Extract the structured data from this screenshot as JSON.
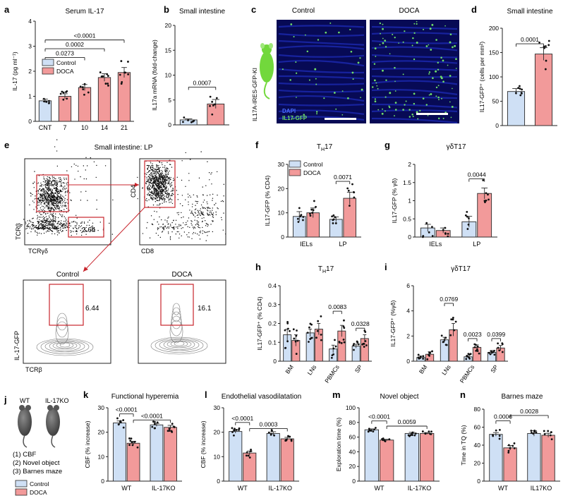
{
  "colors": {
    "control": "#cfe0f5",
    "doca": "#f29a9a",
    "edge": "#2b2b2b",
    "gate": "#c8242c",
    "micro_bg": "#0b0f5a",
    "green": "#6fe06a"
  },
  "panels": [
    {
      "key": "a",
      "letter": "a",
      "title": "Serum IL-17",
      "ylabel": "IL-17 (pg ml⁻¹)",
      "ylim": [
        0,
        4
      ],
      "yticks": [
        0,
        1,
        2,
        3,
        4
      ],
      "categories": [
        "CNT",
        "7",
        "10",
        "14",
        "21"
      ],
      "values": [
        0.82,
        1.0,
        1.35,
        1.75,
        1.95
      ],
      "errors": [
        0.07,
        0.1,
        0.12,
        0.15,
        0.2
      ],
      "groups": [
        "control",
        "doca",
        "doca",
        "doca",
        "doca"
      ],
      "xlabel": "",
      "legend": [
        "Control",
        "DOCA"
      ],
      "sig": [
        {
          "text": "<0.0001",
          "from": 0,
          "to": 4,
          "y": 3.25
        },
        {
          "text": "0.0002",
          "from": 0,
          "to": 3,
          "y": 2.9
        },
        {
          "text": "0.0273",
          "from": 0,
          "to": 2,
          "y": 2.55
        }
      ]
    },
    {
      "key": "b",
      "letter": "b",
      "title": "Small intestine",
      "ylabel": "IL17a mRNA (fold-change)",
      "ylim": [
        0,
        20
      ],
      "yticks": [
        0,
        5,
        10,
        15,
        20
      ],
      "categories": [
        "",
        ""
      ],
      "values": [
        1.0,
        4.2
      ],
      "errors": [
        0.2,
        0.9
      ],
      "groups": [
        "control",
        "doca"
      ],
      "sig": [
        {
          "text": "0.0007",
          "from": 0,
          "to": 1,
          "y": 7.6
        }
      ]
    },
    {
      "key": "d",
      "letter": "d",
      "title": "Small intestine",
      "ylabel": "IL17-GFP⁺ (cells per mm²)",
      "ylim": [
        0,
        200
      ],
      "yticks": [
        0,
        50,
        100,
        150,
        200
      ],
      "categories": [
        "",
        ""
      ],
      "values": [
        70,
        147
      ],
      "errors": [
        6,
        13
      ],
      "groups": [
        "control",
        "doca"
      ],
      "sig": [
        {
          "text": "0.0001",
          "from": 0,
          "to": 1,
          "y": 168
        }
      ]
    },
    {
      "key": "f",
      "letter": "f",
      "title": "TH17",
      "ylabel": "IL17-GFP (% CD4)",
      "ylim": [
        0,
        30
      ],
      "yticks": [
        0,
        10,
        20,
        30
      ],
      "categories": [
        "IELs",
        "LP"
      ],
      "values": [
        8.5,
        10.0,
        7.3,
        16.0
      ],
      "errors": [
        2,
        2,
        1,
        2.5
      ],
      "groups": [
        "control",
        "doca",
        "control",
        "doca"
      ],
      "legend": [
        "Control",
        "DOCA"
      ],
      "sig": [
        {
          "text": "0.0071",
          "from": 2,
          "to": 3,
          "y": 23
        }
      ]
    },
    {
      "key": "g",
      "letter": "g",
      "title": "γδT17",
      "ylabel": "IL17-GFP (% γδ)",
      "ylim": [
        0,
        2.0
      ],
      "yticks": [
        0,
        0.5,
        1.0,
        1.5,
        2.0
      ],
      "categories": [
        "IELs",
        "LP"
      ],
      "values": [
        0.25,
        0.18,
        0.42,
        1.2
      ],
      "errors": [
        0.1,
        0.07,
        0.15,
        0.15
      ],
      "groups": [
        "control",
        "doca",
        "control",
        "doca"
      ],
      "sig": [
        {
          "text": "0.0044",
          "from": 2,
          "to": 3,
          "y": 1.6
        }
      ]
    },
    {
      "key": "h",
      "letter": "h",
      "title": "TH17",
      "ylabel": "IL17-GFP⁺ (% CD4)",
      "ylim": [
        0,
        0.4
      ],
      "yticks": [
        0,
        0.1,
        0.2,
        0.3,
        0.4
      ],
      "categories": [
        "BM",
        "LNs",
        "PBMCs",
        "SP"
      ],
      "values": [
        0.14,
        0.11,
        0.15,
        0.17,
        0.065,
        0.16,
        0.08,
        0.12
      ],
      "errors": [
        0.03,
        0.03,
        0.02,
        0.03,
        0.02,
        0.03,
        0.01,
        0.02
      ],
      "groups": [
        "control",
        "doca",
        "control",
        "doca",
        "control",
        "doca",
        "control",
        "doca"
      ],
      "sig": [
        {
          "text": "0.0083",
          "from": 4,
          "to": 5,
          "y": 0.265
        },
        {
          "text": "0.0328",
          "from": 6,
          "to": 7,
          "y": 0.175
        }
      ]
    },
    {
      "key": "i",
      "letter": "i",
      "title": "γδT17",
      "ylabel": "IL17-GFP⁺ (%γδ)",
      "ylim": [
        0,
        6
      ],
      "yticks": [
        0,
        2,
        4,
        6
      ],
      "categories": [
        "BM",
        "LNs",
        "PBMCs",
        "SP"
      ],
      "values": [
        0.3,
        0.55,
        1.7,
        2.5,
        0.35,
        1.1,
        0.7,
        1.05
      ],
      "errors": [
        0.1,
        0.2,
        0.2,
        0.5,
        0.1,
        0.2,
        0.15,
        0.2
      ],
      "groups": [
        "control",
        "doca",
        "control",
        "doca",
        "control",
        "doca",
        "control",
        "doca"
      ],
      "sig": [
        {
          "text": "0.0769",
          "from": 2,
          "to": 3,
          "y": 4.6
        },
        {
          "text": "0.0023",
          "from": 4,
          "to": 5,
          "y": 1.8
        },
        {
          "text": "0.0399",
          "from": 6,
          "to": 7,
          "y": 1.8
        }
      ]
    },
    {
      "key": "k",
      "letter": "k",
      "title": "Functional hyperemia",
      "ylabel": "CBF (% increase)",
      "ylim": [
        0,
        30
      ],
      "yticks": [
        0,
        10,
        20,
        30
      ],
      "categories": [
        "WT",
        "IL-17KO"
      ],
      "values": [
        23.8,
        15.5,
        23.0,
        22.0
      ],
      "errors": [
        0.8,
        0.8,
        0.6,
        0.8
      ],
      "groups": [
        "control",
        "doca",
        "control",
        "doca"
      ],
      "sig": [
        {
          "text": "<0.0001",
          "from": 0,
          "to": 1,
          "y": 27.5
        },
        {
          "text": "<0.0001",
          "from": 1,
          "to": 3,
          "y": 25
        }
      ]
    },
    {
      "key": "l",
      "letter": "l",
      "title": "Endothelial vasodilatation",
      "ylabel": "CBF (% increase)",
      "ylim": [
        0,
        30
      ],
      "yticks": [
        0,
        10,
        20,
        30
      ],
      "categories": [
        "WT",
        "IL-17KO"
      ],
      "values": [
        20.3,
        11.5,
        19.5,
        17.3
      ],
      "errors": [
        0.7,
        0.8,
        0.7,
        0.6
      ],
      "groups": [
        "control",
        "doca",
        "control",
        "doca"
      ],
      "sig": [
        {
          "text": "<0.0001",
          "from": 0,
          "to": 1,
          "y": 24
        },
        {
          "text": "0.0003",
          "from": 1,
          "to": 3,
          "y": 21.5
        }
      ]
    },
    {
      "key": "m",
      "letter": "m",
      "title": "Novel object",
      "ylabel": "Exploration time (%)",
      "ylim": [
        0,
        100
      ],
      "yticks": [
        0,
        20,
        40,
        60,
        80,
        100
      ],
      "categories": [
        "WT",
        "IL-17KO"
      ],
      "values": [
        70,
        56,
        65,
        65
      ],
      "errors": [
        1.2,
        1,
        1.5,
        1.2
      ],
      "groups": [
        "control",
        "doca",
        "control",
        "doca"
      ],
      "sig": [
        {
          "text": "<0.0001",
          "from": 0,
          "to": 1,
          "y": 82
        },
        {
          "text": "0.0059",
          "from": 1,
          "to": 3,
          "y": 75
        }
      ]
    },
    {
      "key": "n",
      "letter": "n",
      "title": "Barnes maze",
      "ylabel": "Time in TQ (%)",
      "ylim": [
        0,
        80
      ],
      "yticks": [
        0,
        20,
        40,
        60,
        80
      ],
      "categories": [
        "WT",
        "IL17KO"
      ],
      "values": [
        52,
        37,
        53,
        51
      ],
      "errors": [
        2,
        2.5,
        3,
        2.2
      ],
      "groups": [
        "control",
        "doca",
        "control",
        "doca"
      ],
      "sig": [
        {
          "text": "0.0006",
          "from": 0,
          "to": 1,
          "y": 67
        },
        {
          "text": "0.0028",
          "from": 1,
          "to": 3,
          "y": 73
        }
      ]
    }
  ],
  "panel_c": {
    "letter": "c",
    "title_left": "Control",
    "title_right": "DOCA",
    "side_label": "IL17A-IRES-GFP-KI",
    "legend_dapi": "DAPI",
    "legend_gfp": "IL17-GFP"
  },
  "panel_e": {
    "letter": "e",
    "title": "Small intestine: LP",
    "plot1": {
      "x": "TCRγδ",
      "y": "TCRβ",
      "gate1": "39.5",
      "gate2": "2.64"
    },
    "plot2": {
      "x": "CD8",
      "y": "CD4",
      "gate": "76.5"
    },
    "plot3": {
      "title": "Control",
      "x": "TCRβ",
      "y": "IL-17-GFP",
      "gate": "6.44"
    },
    "plot4": {
      "title": "DOCA",
      "gate": "16.1"
    }
  },
  "panel_j": {
    "letter": "j",
    "mouse1": "WT",
    "mouse2": "IL-17KO",
    "steps": [
      "(1) CBF",
      "(2) Novel object",
      "(3) Barnes maze"
    ],
    "legend": [
      "Control",
      "DOCA"
    ]
  }
}
